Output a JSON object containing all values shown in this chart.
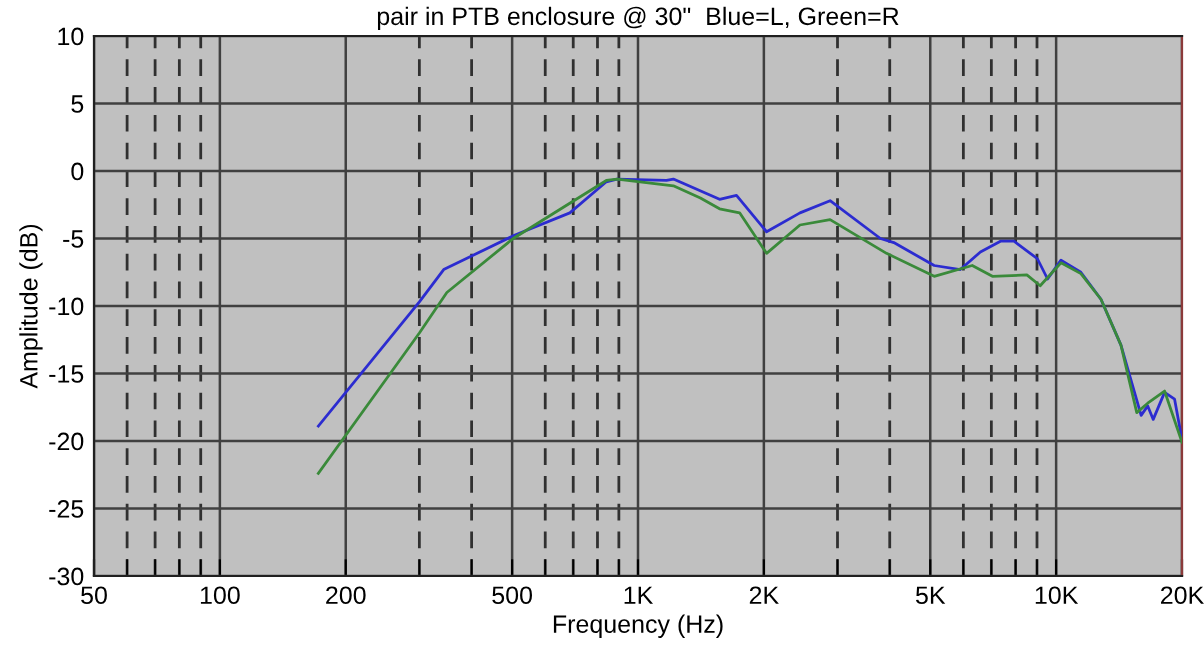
{
  "chart_data": {
    "type": "line",
    "title": "pair in PTB enclosure @ 30\"  Blue=L, Green=R",
    "xlabel": "Frequency (Hz)",
    "ylabel": "Amplitude (dB)",
    "log": "x",
    "grid": true,
    "marker": "none",
    "line_style": "solid",
    "xlim": [
      50,
      20000
    ],
    "ylim": [
      -30,
      10
    ],
    "xticks": [
      50,
      100,
      200,
      500,
      {
        "value": 1000,
        "label": "1K"
      },
      {
        "value": 2000,
        "label": "2K"
      },
      {
        "value": 5000,
        "label": "5K"
      },
      {
        "value": 10000,
        "label": "10K"
      },
      {
        "value": 20000,
        "label": "20K"
      },
      {
        "value": 60,
        "label": null
      },
      {
        "value": 70,
        "label": null
      },
      {
        "value": 80,
        "label": null
      },
      {
        "value": 90,
        "label": null
      },
      {
        "value": 300,
        "label": null
      },
      {
        "value": 400,
        "label": null
      },
      {
        "value": 600,
        "label": null
      },
      {
        "value": 700,
        "label": null
      },
      {
        "value": 800,
        "label": null
      },
      {
        "value": 900,
        "label": null
      },
      {
        "value": 3000,
        "label": null
      },
      {
        "value": 4000,
        "label": null
      },
      {
        "value": 6000,
        "label": null
      },
      {
        "value": 7000,
        "label": null
      },
      {
        "value": 8000,
        "label": null
      },
      {
        "value": 9000,
        "label": null
      }
    ],
    "yticks": [
      10,
      5,
      0,
      -5,
      -10,
      -15,
      -20,
      -25,
      -30
    ],
    "series": [
      {
        "color": "#2c2cd0",
        "x": [
          172,
          300,
          343,
          503,
          687,
          840,
          891,
          1170,
          1215,
          1567,
          1720,
          2030,
          2440,
          2880,
          3800,
          4090,
          5110,
          5900,
          6590,
          7360,
          7930,
          9020,
          9540,
          10270,
          11460,
          12800,
          14290,
          15970,
          16560,
          17070,
          18170,
          19200,
          20000
        ],
        "values": [
          -18.9,
          -9.7,
          -7.3,
          -4.8,
          -3.1,
          -0.8,
          -0.6,
          -0.7,
          -0.6,
          -2.1,
          -1.8,
          -4.5,
          -3.1,
          -2.2,
          -5.0,
          -5.3,
          -7.0,
          -7.3,
          -6.0,
          -5.2,
          -5.2,
          -6.5,
          -8.0,
          -6.6,
          -7.5,
          -9.5,
          -12.9,
          -18.1,
          -17.4,
          -18.4,
          -16.4,
          -16.9,
          -19.9
        ]
      },
      {
        "color": "#3a8a3a",
        "x": [
          172,
          300,
          349,
          503,
          840,
          891,
          1215,
          1410,
          1567,
          1750,
          2030,
          2440,
          2880,
          3930,
          5110,
          6300,
          7040,
          8510,
          9160,
          10270,
          11460,
          12800,
          14290,
          15590,
          16560,
          18170,
          20000
        ],
        "values": [
          -22.4,
          -12.0,
          -9.0,
          -5.0,
          -0.7,
          -0.6,
          -1.1,
          -2.0,
          -2.8,
          -3.1,
          -6.1,
          -4.0,
          -3.6,
          -6.1,
          -7.8,
          -7.0,
          -7.8,
          -7.7,
          -8.5,
          -6.8,
          -7.6,
          -9.5,
          -12.9,
          -17.9,
          -17.2,
          -16.3,
          -20.1
        ]
      }
    ]
  }
}
